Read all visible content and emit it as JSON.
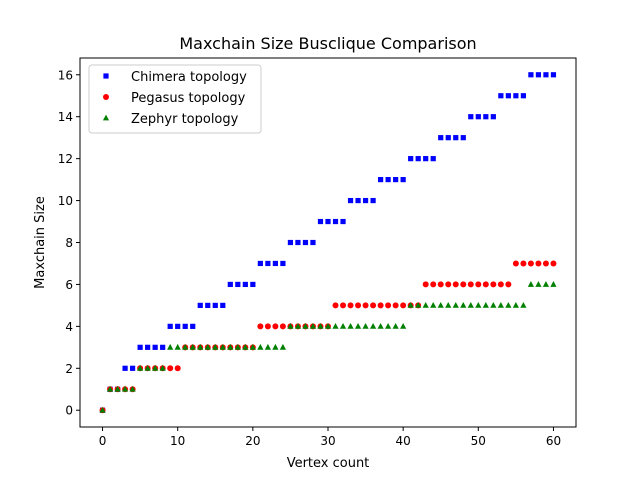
{
  "chart_data": {
    "type": "scatter",
    "title": "Maxchain Size Busclique Comparison",
    "xlabel": "Vertex count",
    "ylabel": "Maxchain Size",
    "xlim": [
      -3,
      63
    ],
    "ylim": [
      -0.8,
      16.8
    ],
    "xticks": [
      0,
      10,
      20,
      30,
      40,
      50,
      60
    ],
    "yticks": [
      0,
      2,
      4,
      6,
      8,
      10,
      12,
      14,
      16
    ],
    "xtick_labels": [
      "0",
      "10",
      "20",
      "30",
      "40",
      "50",
      "60"
    ],
    "ytick_labels": [
      "0",
      "2",
      "4",
      "6",
      "8",
      "10",
      "12",
      "14",
      "16"
    ],
    "grid": false,
    "legend_position": "top-left",
    "x": [
      0,
      1,
      2,
      3,
      4,
      5,
      6,
      7,
      8,
      9,
      10,
      11,
      12,
      13,
      14,
      15,
      16,
      17,
      18,
      19,
      20,
      21,
      22,
      23,
      24,
      25,
      26,
      27,
      28,
      29,
      30,
      31,
      32,
      33,
      34,
      35,
      36,
      37,
      38,
      39,
      40,
      41,
      42,
      43,
      44,
      45,
      46,
      47,
      48,
      49,
      50,
      51,
      52,
      53,
      54,
      55,
      56,
      57,
      58,
      59,
      60
    ],
    "series": [
      {
        "name": "Chimera topology",
        "color": "#0000ff",
        "marker": "square",
        "values": [
          0,
          1,
          1,
          2,
          2,
          3,
          3,
          3,
          3,
          4,
          4,
          4,
          4,
          5,
          5,
          5,
          5,
          6,
          6,
          6,
          6,
          7,
          7,
          7,
          7,
          8,
          8,
          8,
          8,
          9,
          9,
          9,
          9,
          10,
          10,
          10,
          10,
          11,
          11,
          11,
          11,
          12,
          12,
          12,
          12,
          13,
          13,
          13,
          13,
          14,
          14,
          14,
          14,
          15,
          15,
          15,
          15,
          16,
          16,
          16,
          16
        ]
      },
      {
        "name": "Pegasus topology",
        "color": "#ff0000",
        "marker": "circle",
        "values": [
          0,
          1,
          1,
          1,
          1,
          2,
          2,
          2,
          2,
          2,
          2,
          3,
          3,
          3,
          3,
          3,
          3,
          3,
          3,
          3,
          3,
          4,
          4,
          4,
          4,
          4,
          4,
          4,
          4,
          4,
          4,
          5,
          5,
          5,
          5,
          5,
          5,
          5,
          5,
          5,
          5,
          5,
          5,
          6,
          6,
          6,
          6,
          6,
          6,
          6,
          6,
          6,
          6,
          6,
          6,
          7,
          7,
          7,
          7,
          7,
          7
        ]
      },
      {
        "name": "Zephyr topology",
        "color": "#008000",
        "marker": "triangle",
        "values": [
          0,
          1,
          1,
          1,
          1,
          2,
          2,
          2,
          2,
          3,
          3,
          3,
          3,
          3,
          3,
          3,
          3,
          3,
          3,
          3,
          3,
          3,
          3,
          3,
          3,
          4,
          4,
          4,
          4,
          4,
          4,
          4,
          4,
          4,
          4,
          4,
          4,
          4,
          4,
          4,
          4,
          5,
          5,
          5,
          5,
          5,
          5,
          5,
          5,
          5,
          5,
          5,
          5,
          5,
          5,
          5,
          5,
          6,
          6,
          6,
          6
        ]
      }
    ]
  }
}
